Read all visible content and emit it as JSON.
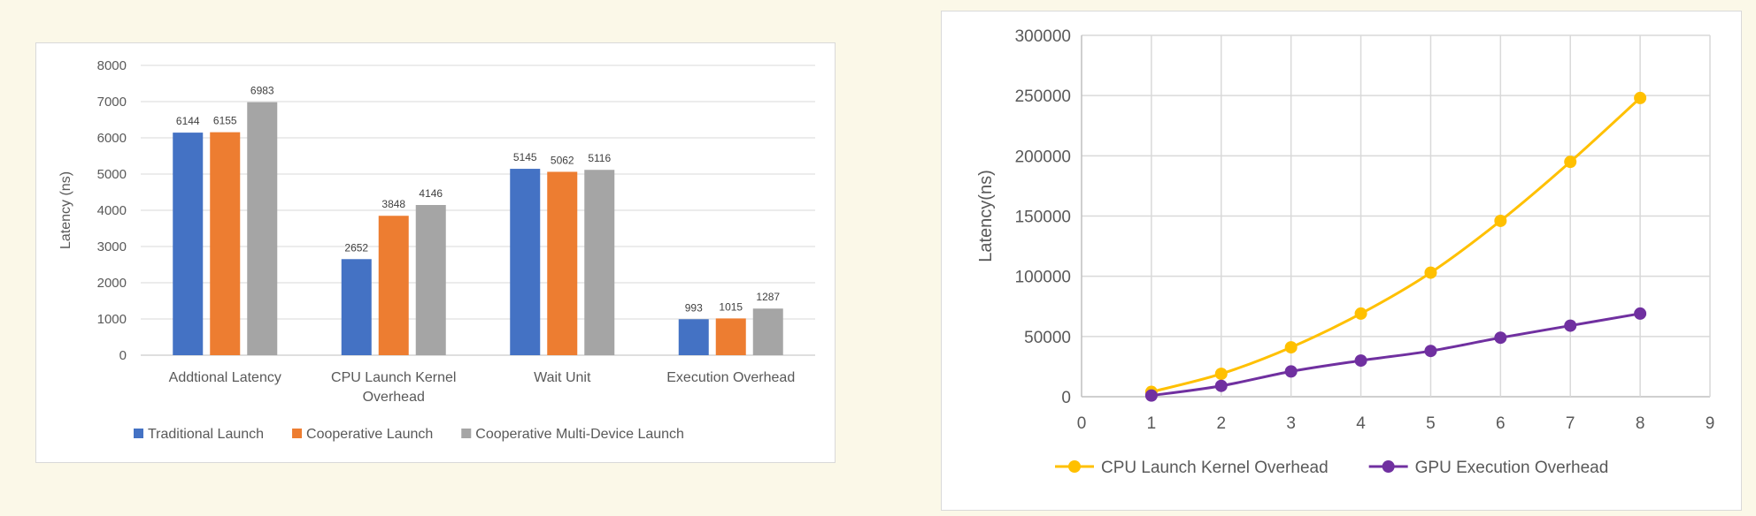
{
  "chart_data": [
    {
      "type": "bar",
      "title": "",
      "xlabel": "",
      "ylabel": "Latency (ns)",
      "ylim": [
        0,
        8000
      ],
      "yticks": [
        0,
        1000,
        2000,
        3000,
        4000,
        5000,
        6000,
        7000,
        8000
      ],
      "grid": true,
      "legend_position": "bottom",
      "categories": [
        [
          "Addtional Latency"
        ],
        [
          "CPU Launch Kernel",
          "Overhead"
        ],
        [
          "Wait Unit"
        ],
        [
          "Execution Overhead"
        ]
      ],
      "series": [
        {
          "name": "Traditional Launch",
          "color": "#4472c4",
          "values": [
            6144,
            2652,
            5145,
            993
          ]
        },
        {
          "name": "Cooperative Launch",
          "color": "#ed7d31",
          "values": [
            6155,
            3848,
            5062,
            1015
          ]
        },
        {
          "name": "Cooperative Multi-Device Launch",
          "color": "#a5a5a5",
          "values": [
            6983,
            4146,
            5116,
            1287
          ]
        }
      ]
    },
    {
      "type": "line",
      "title": "",
      "xlabel": "",
      "ylabel": "Latency(ns)",
      "xlim": [
        0,
        9
      ],
      "ylim": [
        0,
        300000
      ],
      "xticks": [
        0,
        1,
        2,
        3,
        4,
        5,
        6,
        7,
        8,
        9
      ],
      "yticks": [
        0,
        50000,
        100000,
        150000,
        200000,
        250000,
        300000
      ],
      "grid": true,
      "legend_position": "bottom",
      "x": [
        1,
        2,
        3,
        4,
        5,
        6,
        7,
        8
      ],
      "series": [
        {
          "name": "CPU Launch Kernel Overhead",
          "color": "#ffc000",
          "values": [
            4000,
            19000,
            41000,
            69000,
            103000,
            146000,
            195000,
            248000
          ]
        },
        {
          "name": "GPU Execution Overhead",
          "color": "#7030a0",
          "values": [
            1000,
            9000,
            21000,
            30000,
            38000,
            49000,
            59000,
            69000
          ]
        }
      ]
    }
  ]
}
